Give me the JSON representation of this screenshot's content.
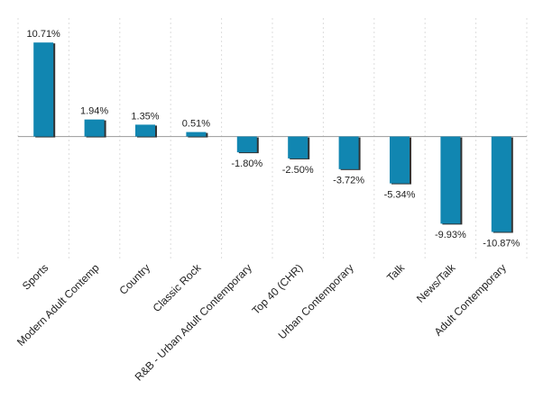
{
  "chart_data": {
    "type": "bar",
    "categories": [
      "Sports",
      "Modern Adult Contemp",
      "Country",
      "Classic Rock",
      "R&B - Urban Adult Contemporary",
      "Top 40 (CHR)",
      "Urban Contemporary",
      "Talk",
      "News/Talk",
      "Adult Contemporary"
    ],
    "values": [
      10.71,
      1.94,
      1.35,
      0.51,
      -1.8,
      -2.5,
      -3.72,
      -5.34,
      -9.93,
      -10.87
    ],
    "value_labels": [
      "10.71%",
      "1.94%",
      "1.35%",
      "0.51%",
      "-1.80%",
      "-2.50%",
      "-3.72%",
      "-5.34%",
      "-9.93%",
      "-10.87%"
    ],
    "color": "#1186b1",
    "ylim": [
      -14,
      13.5
    ],
    "grid": true
  }
}
